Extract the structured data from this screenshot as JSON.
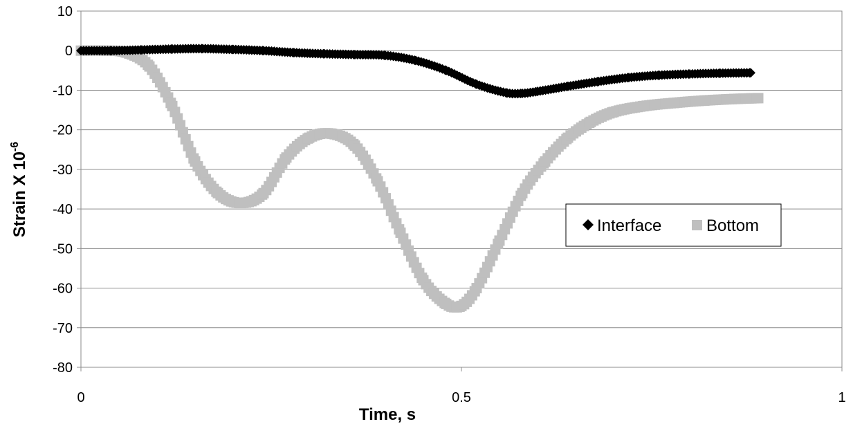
{
  "chart_data": {
    "type": "scatter",
    "title": "",
    "xlabel": "Time, s",
    "ylabel": "Strain X 10",
    "ylabel_superscript": "-6",
    "xlim": [
      0,
      1
    ],
    "ylim": [
      -80,
      10
    ],
    "x_ticks": [
      "0",
      "0.5",
      "1"
    ],
    "x_tick_values": [
      0,
      0.5,
      1
    ],
    "y_ticks": [
      "10",
      "0",
      "-10",
      "-20",
      "-30",
      "-40",
      "-50",
      "-60",
      "-70",
      "-80"
    ],
    "y_tick_values": [
      10,
      0,
      -10,
      -20,
      -30,
      -40,
      -50,
      -60,
      -70,
      -80
    ],
    "grid": "horizontal",
    "legend_position": "right-middle",
    "series": [
      {
        "name": "Interface",
        "marker": "diamond",
        "color": "#000000",
        "x": [
          0,
          0.04,
          0.08,
          0.12,
          0.16,
          0.2,
          0.24,
          0.28,
          0.32,
          0.36,
          0.4,
          0.44,
          0.48,
          0.52,
          0.56,
          0.58,
          0.6,
          0.64,
          0.68,
          0.72,
          0.76,
          0.8,
          0.84,
          0.88
        ],
        "y": [
          0,
          0,
          0.2,
          0.4,
          0.5,
          0.3,
          0,
          -0.5,
          -0.8,
          -1,
          -1.2,
          -2.5,
          -5,
          -8.5,
          -10.7,
          -10.8,
          -10.3,
          -9,
          -7.8,
          -6.8,
          -6.2,
          -5.9,
          -5.7,
          -5.6
        ]
      },
      {
        "name": "Bottom",
        "marker": "square",
        "color": "#bfbfbf",
        "x": [
          0,
          0.03,
          0.06,
          0.09,
          0.12,
          0.15,
          0.18,
          0.21,
          0.24,
          0.27,
          0.3,
          0.33,
          0.36,
          0.39,
          0.42,
          0.45,
          0.48,
          0.5,
          0.52,
          0.55,
          0.58,
          0.61,
          0.64,
          0.67,
          0.7,
          0.74,
          0.78,
          0.82,
          0.86,
          0.89
        ],
        "y": [
          0,
          0,
          -0.5,
          -4,
          -14,
          -28,
          -36,
          -38.5,
          -36,
          -27,
          -22,
          -21,
          -24,
          -33,
          -46,
          -58,
          -64,
          -64.5,
          -60,
          -48,
          -36,
          -28,
          -22,
          -18,
          -15.5,
          -14,
          -13.2,
          -12.6,
          -12.2,
          -12
        ]
      }
    ]
  }
}
